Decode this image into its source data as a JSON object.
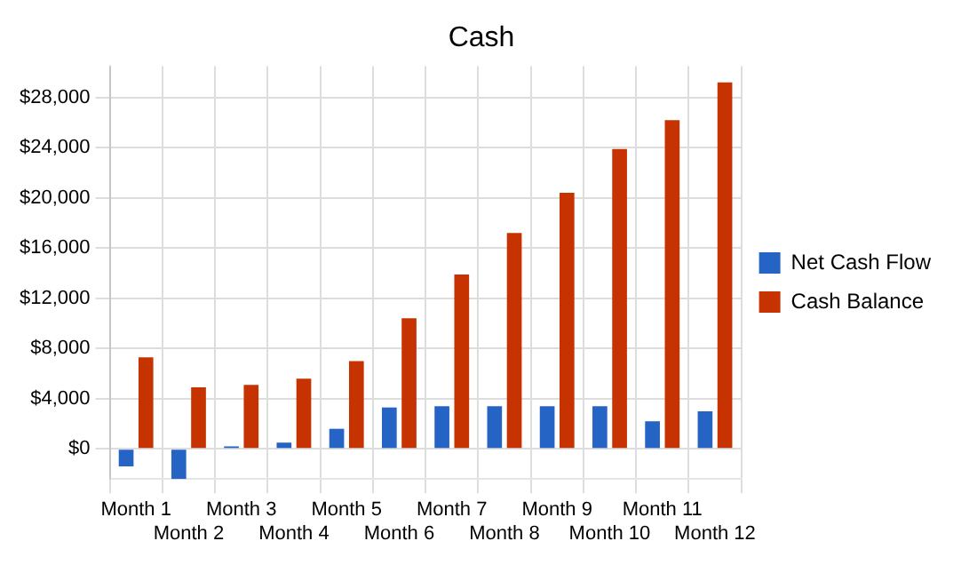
{
  "chart_data": {
    "type": "bar",
    "title": "Cash",
    "categories": [
      "Month 1",
      "Month 2",
      "Month 3",
      "Month 4",
      "Month 5",
      "Month 6",
      "Month 7",
      "Month 8",
      "Month 9",
      "Month 10",
      "Month 11",
      "Month 12"
    ],
    "series": [
      {
        "name": "Net Cash Flow",
        "color": "#2563c4",
        "values": [
          -1400,
          -2400,
          200,
          500,
          1600,
          3300,
          3400,
          3400,
          3400,
          3400,
          2200,
          3000
        ]
      },
      {
        "name": "Cash Balance",
        "color": "#c63300",
        "values": [
          7300,
          4900,
          5100,
          5600,
          7000,
          10400,
          13900,
          17200,
          20400,
          23900,
          26200,
          29200
        ]
      }
    ],
    "ylim": [
      -2400,
      30500
    ],
    "yticks": [
      {
        "value": 0,
        "label": "$0"
      },
      {
        "value": 4000,
        "label": "$4,000"
      },
      {
        "value": 8000,
        "label": "$8,000"
      },
      {
        "value": 12000,
        "label": "$12,000"
      },
      {
        "value": 16000,
        "label": "$16,000"
      },
      {
        "value": 20000,
        "label": "$20,000"
      },
      {
        "value": 24000,
        "label": "$24,000"
      },
      {
        "value": 28000,
        "label": "$28,000"
      }
    ],
    "grid": true,
    "legend": "right"
  }
}
